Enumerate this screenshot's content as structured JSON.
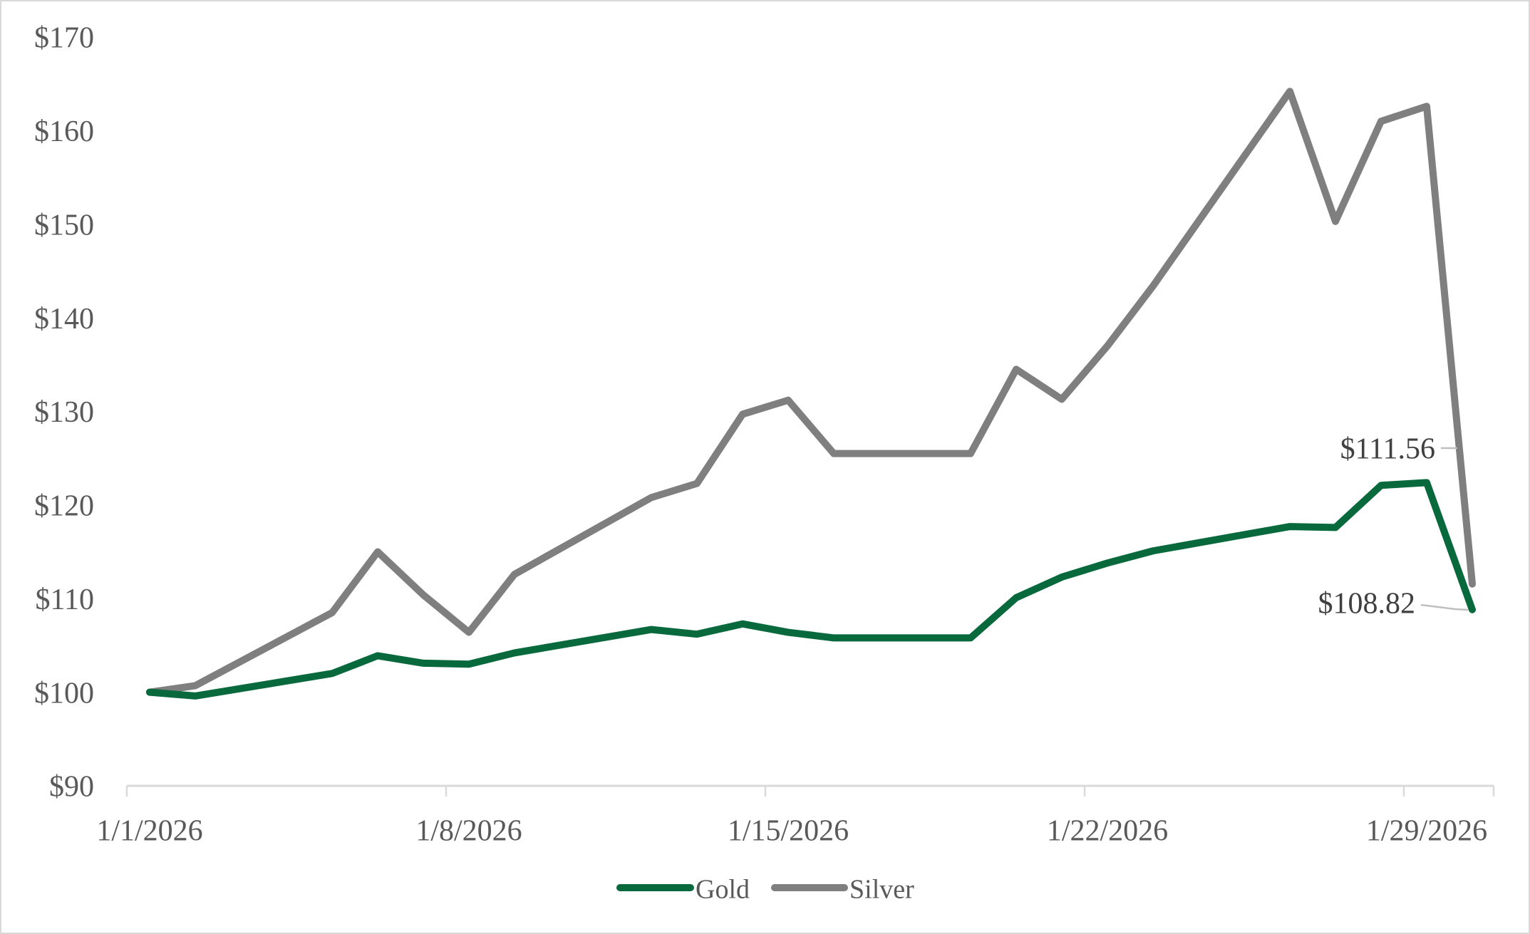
{
  "chart_data": {
    "type": "line",
    "title": "",
    "xlabel": "",
    "ylabel": "",
    "grid": false,
    "legend_position": "bottom-center",
    "x": [
      "1/1/2026",
      "1/2/2026",
      "1/5/2026",
      "1/6/2026",
      "1/7/2026",
      "1/8/2026",
      "1/9/2026",
      "1/12/2026",
      "1/13/2026",
      "1/14/2026",
      "1/15/2026",
      "1/16/2026",
      "1/19/2026",
      "1/20/2026",
      "1/21/2026",
      "1/22/2026",
      "1/23/2026",
      "1/26/2026",
      "1/27/2026",
      "1/28/2026",
      "1/29/2026",
      "1/30/2026"
    ],
    "series": [
      {
        "name": "Gold",
        "color": "#07693C",
        "values": [
          100.0,
          99.6,
          102.0,
          103.9,
          103.1,
          103.0,
          104.2,
          106.7,
          106.2,
          107.3,
          106.4,
          105.8,
          105.8,
          110.1,
          112.3,
          113.8,
          115.1,
          117.7,
          117.6,
          122.1,
          122.4,
          108.82
        ]
      },
      {
        "name": "Silver",
        "color": "#7F7F7F",
        "values": [
          100.0,
          100.7,
          108.5,
          115.0,
          110.4,
          106.4,
          112.6,
          120.8,
          122.3,
          129.7,
          131.2,
          125.5,
          125.5,
          134.5,
          131.3,
          137.0,
          143.4,
          164.2,
          150.3,
          161.0,
          162.6,
          111.56
        ]
      }
    ],
    "y_axis": {
      "min": 90,
      "max": 170,
      "step": 10,
      "tick_labels": [
        "$90",
        "$100",
        "$110",
        "$120",
        "$130",
        "$140",
        "$150",
        "$160",
        "$170"
      ]
    },
    "x_axis": {
      "tick_labels": [
        "1/1/2026",
        "1/8/2026",
        "1/15/2026",
        "1/22/2026",
        "1/29/2026"
      ]
    },
    "end_labels": [
      {
        "series": "Silver",
        "text": "$111.56"
      },
      {
        "series": "Gold",
        "text": "$108.82"
      }
    ],
    "legend": [
      {
        "label": "Gold"
      },
      {
        "label": "Silver"
      }
    ]
  },
  "colors": {
    "gold_line": "#07693C",
    "silver_line": "#7F7F7F",
    "axis_text": "#595959",
    "data_label_text": "#404040",
    "leader_line": "#BFBFBF",
    "axis_line": "#D9D9D9",
    "border": "#D9D9D9",
    "background": "#FFFFFF"
  }
}
